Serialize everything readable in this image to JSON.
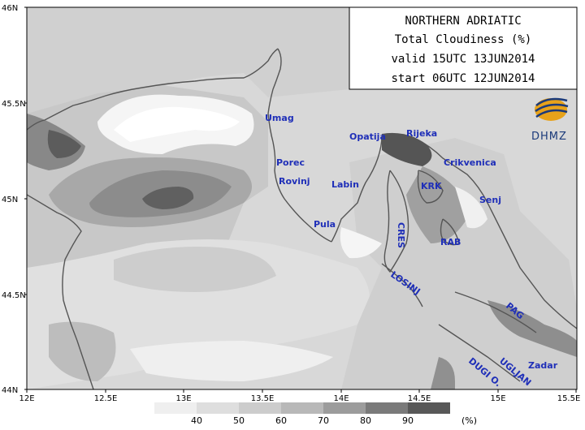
{
  "title": {
    "line1": "NORTHERN ADRIATIC",
    "line2": "Total Cloudiness (%)",
    "line3": "valid 15UTC 13JUN2014",
    "line4": "start 06UTC 12JUN2014"
  },
  "logo": {
    "text": "DHMZ"
  },
  "axes": {
    "x_ticks": [
      "12E",
      "12.5E",
      "13E",
      "13.5E",
      "14E",
      "14.5E",
      "15E",
      "15.5E"
    ],
    "y_ticks": [
      "46N",
      "45.5N",
      "45N",
      "44.5N",
      "44N"
    ]
  },
  "places": {
    "umag": "Umag",
    "porec": "Porec",
    "rovinj": "Rovinj",
    "pula": "Pula",
    "labin": "Labin",
    "opatija": "Opatija",
    "rijeka": "Rijeka",
    "crikvenica": "Crikvenica",
    "krk": "KRK",
    "senj": "Senj",
    "cres": "CRES",
    "rab": "RAB",
    "losinj": "LOSINJ",
    "pag": "PAG",
    "zadar": "Zadar",
    "ugljan": "UGLJAN",
    "dugi_o": "DUGI O."
  },
  "legend": {
    "labels": [
      "40",
      "50",
      "60",
      "70",
      "80",
      "90"
    ],
    "unit": "(%)",
    "colors": [
      "#efefef",
      "#dedede",
      "#cccccc",
      "#b8b8b8",
      "#9c9c9c",
      "#7a7a7a",
      "#585858"
    ]
  },
  "shading_colors": {
    "c40": "#e6e6e6",
    "c50": "#d7d7d7",
    "c60": "#c6c6c6",
    "c70": "#b2b2b2",
    "c80": "#969696",
    "c90": "#747474",
    "c100": "#555555",
    "clear": "#f7f7f7"
  }
}
